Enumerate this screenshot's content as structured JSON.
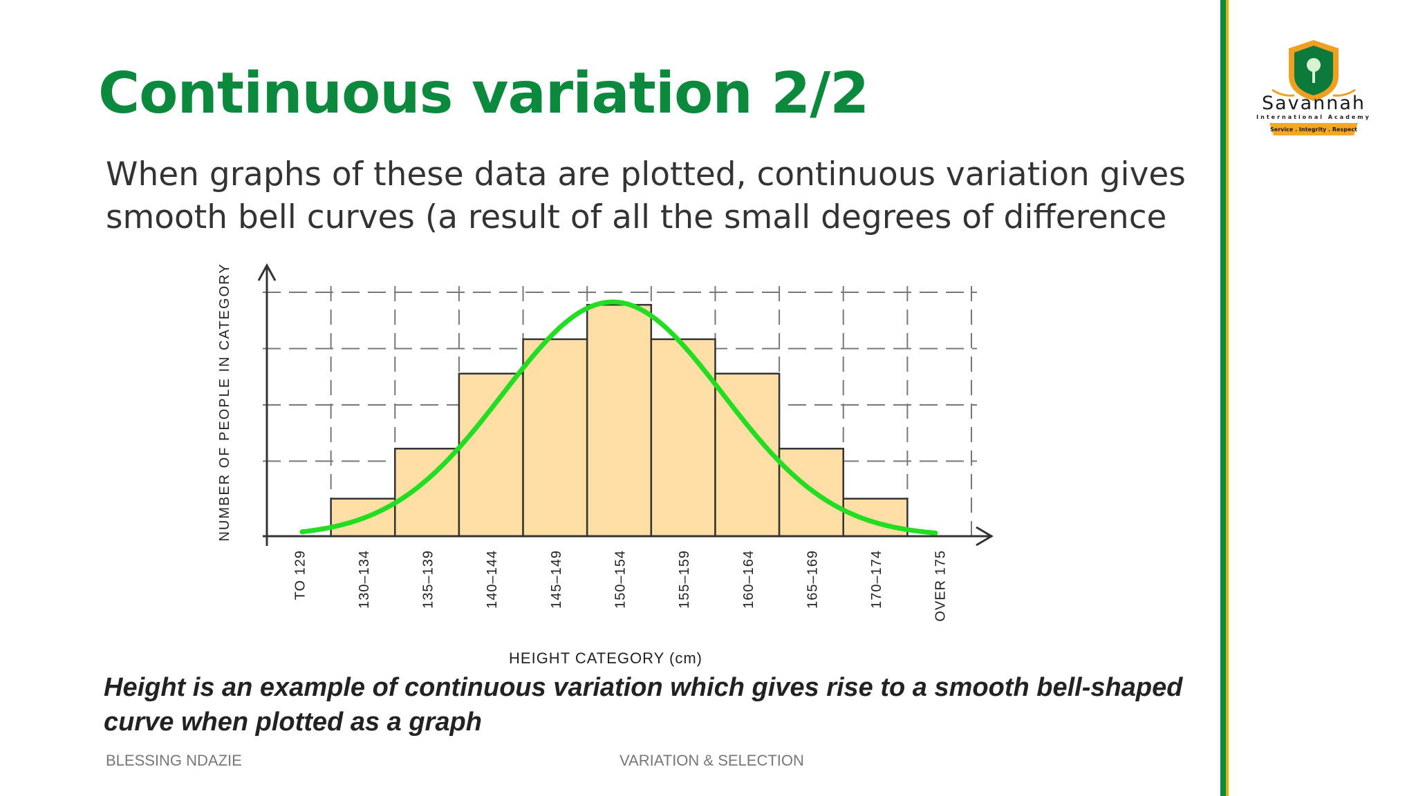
{
  "slide": {
    "title": "Continuous variation 2/2",
    "body": "When graphs of these data are plotted, continuous variation gives smooth bell curves (a result of all the small degrees of difference",
    "caption": "Height is an example of continuous variation which gives rise to a smooth bell-shaped curve when plotted as a graph",
    "footer_left": "BLESSING NDAZIE",
    "footer_center": "VARIATION & SELECTION"
  },
  "logo": {
    "name": "Savannah",
    "subtitle": "International Academy",
    "motto": "Service . Integrity . Respect",
    "colors": {
      "shield": "#0b7a3a",
      "gold": "#f0a020",
      "ribbon": "#f5a623"
    }
  },
  "chart_data": {
    "type": "bar",
    "title": "",
    "xlabel": "HEIGHT CATEGORY (cm)",
    "ylabel": "NUMBER OF PEOPLE IN CATEGORY",
    "categories": [
      "TO 129",
      "130–134",
      "135–139",
      "140–144",
      "145–149",
      "150–154",
      "155–159",
      "160–164",
      "165–169",
      "170–174",
      "OVER 175"
    ],
    "values": [
      0,
      0.6,
      1.4,
      2.6,
      3.15,
      3.7,
      3.15,
      2.6,
      1.4,
      0.6,
      0
    ],
    "ylim": [
      0,
      4
    ],
    "grid": true,
    "curve": "smooth bell curve over bars",
    "colors": {
      "bar": "#fddfa6",
      "bar_edge": "#333333",
      "curve": "#22dd22",
      "grid": "#777777"
    }
  }
}
